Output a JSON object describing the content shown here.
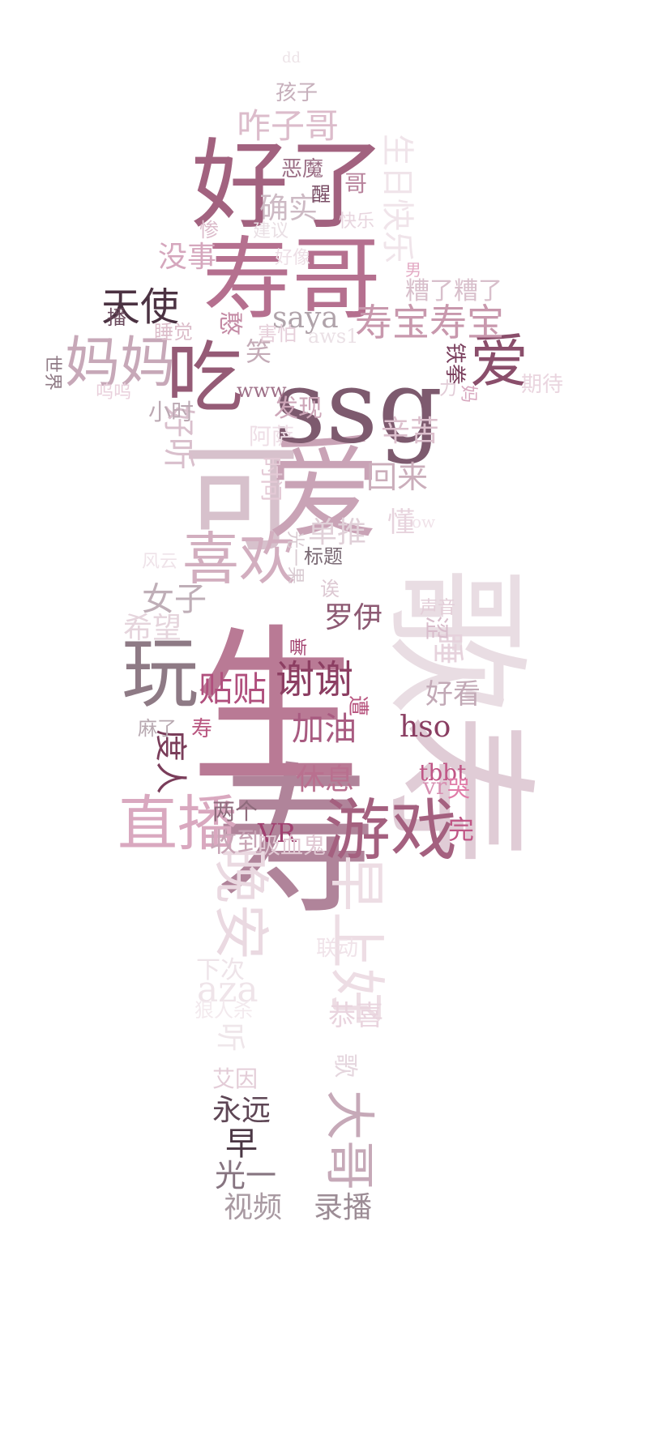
{
  "words": [
    {
      "text": "寿",
      "color": "#b0849a"
    },
    {
      "text": "生",
      "color": "#b97a95"
    },
    {
      "text": "寿",
      "color": "#e0ccd6"
    },
    {
      "text": "歌",
      "color": "#e9dde3"
    },
    {
      "text": "可",
      "color": "#d7c1cc"
    },
    {
      "text": "爱",
      "color": "#c9a3b6"
    },
    {
      "text": "ssg",
      "color": "#7d5a6e"
    },
    {
      "text": "好了",
      "color": "#a2627f"
    },
    {
      "text": "寿哥",
      "color": "#b5708f"
    },
    {
      "text": "吃",
      "color": "#955b76"
    },
    {
      "text": "玩",
      "color": "#8e7a85"
    },
    {
      "text": "游戏",
      "color": "#a4607f"
    },
    {
      "text": "直播",
      "color": "#d9a8bf"
    },
    {
      "text": "喜欢",
      "color": "#d2aebf"
    },
    {
      "text": "妈妈",
      "color": "#c7a8b8"
    },
    {
      "text": "爱",
      "color": "#8a4e6b"
    },
    {
      "text": "天使",
      "color": "#4b3242"
    },
    {
      "text": "寿宝寿宝",
      "color": "#c898ad"
    },
    {
      "text": "晚安",
      "color": "#ead9e1"
    },
    {
      "text": "早上好",
      "color": "#eddde4"
    },
    {
      "text": "大哥",
      "color": "#c6a9b8"
    },
    {
      "text": "谢谢",
      "color": "#8c3e62"
    },
    {
      "text": "加油",
      "color": "#a85a80"
    },
    {
      "text": "贴贴",
      "color": "#b04f7d"
    },
    {
      "text": "hso",
      "color": "#8a3e62"
    },
    {
      "text": "saya",
      "color": "#b0a3aa"
    },
    {
      "text": "咋子哥",
      "color": "#dcbccb"
    },
    {
      "text": "确实",
      "color": "#cdbac4"
    },
    {
      "text": "没事",
      "color": "#d5a7bd"
    },
    {
      "text": "生日快乐",
      "color": "#f0e4ea"
    },
    {
      "text": "好听",
      "color": "#d9bfcc"
    },
    {
      "text": "回来",
      "color": "#cbaebb"
    },
    {
      "text": "辛苦",
      "color": "#dcc0cd"
    },
    {
      "text": "单推",
      "color": "#e0d0d8"
    },
    {
      "text": "女子",
      "color": "#bfaeb7"
    },
    {
      "text": "希望",
      "color": "#e5d4dc"
    },
    {
      "text": "罗伊",
      "color": "#8d5a73"
    },
    {
      "text": "睡",
      "color": "#e6d2dc"
    },
    {
      "text": "好看",
      "color": "#c2a9b6"
    },
    {
      "text": "度人",
      "color": "#7a3d5a"
    },
    {
      "text": "休息",
      "color": "#b9708f"
    },
    {
      "text": "收到",
      "color": "#c8a5b6"
    },
    {
      "text": "两个",
      "color": "#8e6b7c"
    },
    {
      "text": "VR",
      "color": "#a04070"
    },
    {
      "text": "吸血鬼",
      "color": "#e0c8d3"
    },
    {
      "text": "完",
      "color": "#c05686"
    },
    {
      "text": "tbbt",
      "color": "#c05686"
    },
    {
      "text": "vr",
      "color": "#d790b2"
    },
    {
      "text": "哭",
      "color": "#e07ca8"
    },
    {
      "text": "aza",
      "color": "#efe4e9"
    },
    {
      "text": "永远",
      "color": "#5e4655"
    },
    {
      "text": "早",
      "color": "#4b3744"
    },
    {
      "text": "光一",
      "color": "#867480"
    },
    {
      "text": "视频",
      "color": "#a99aa2"
    },
    {
      "text": "录播",
      "color": "#9c8c95"
    },
    {
      "text": "恭喜",
      "color": "#e9d4de"
    },
    {
      "text": "歌",
      "color": "#e5d6de"
    },
    {
      "text": "艾因",
      "color": "#e3ccd7"
    },
    {
      "text": "听",
      "color": "#efe6ea"
    },
    {
      "text": "下次",
      "color": "#eee4e9"
    },
    {
      "text": "狠人杀",
      "color": "#f3eaee"
    },
    {
      "text": "联动",
      "color": "#f0e3e9"
    },
    {
      "text": "憨",
      "color": "#c48ba5"
    },
    {
      "text": "笑",
      "color": "#c4abb7"
    },
    {
      "text": "害怕",
      "color": "#e6cfda"
    },
    {
      "text": "aws1",
      "color": "#eae0e5"
    },
    {
      "text": "www",
      "color": "#9d6e86"
    },
    {
      "text": "发现",
      "color": "#cda6b8"
    },
    {
      "text": "阿萨",
      "color": "#eedee6"
    },
    {
      "text": "时间",
      "color": "#e4cad6"
    },
    {
      "text": "小时",
      "color": "#bca9b3"
    },
    {
      "text": "睡觉",
      "color": "#dcbdca"
    },
    {
      "text": "播",
      "color": "#6b4a5d"
    },
    {
      "text": "世界",
      "color": "#8f7a85"
    },
    {
      "text": "呜呜",
      "color": "#e9d0dc"
    },
    {
      "text": "铁拳",
      "color": "#7a3f5d"
    },
    {
      "text": "力",
      "color": "#e2ccd7"
    },
    {
      "text": "妈",
      "color": "#d8a8bf"
    },
    {
      "text": "期待",
      "color": "#ead5df"
    },
    {
      "text": "糟了糟了",
      "color": "#d8bfcb"
    },
    {
      "text": "男",
      "color": "#e3aac4"
    },
    {
      "text": "恶魔",
      "color": "#9a6d84"
    },
    {
      "text": "醒",
      "color": "#7a4e66"
    },
    {
      "text": "哥",
      "color": "#b8839c"
    },
    {
      "text": "孩子",
      "color": "#c7b0bc"
    },
    {
      "text": "dd",
      "color": "#ede4e8"
    },
    {
      "text": "惨",
      "color": "#dcbccb"
    },
    {
      "text": "建议",
      "color": "#e9dfe4"
    },
    {
      "text": "快乐",
      "color": "#e8d6df"
    },
    {
      "text": "好像",
      "color": "#eddfe6"
    },
    {
      "text": "懂",
      "color": "#e7d3dd"
    },
    {
      "text": "ow",
      "color": "#f0e2e9"
    },
    {
      "text": "风云",
      "color": "#efe3e9"
    },
    {
      "text": "光一果",
      "color": "#d9cbd2"
    },
    {
      "text": "标题",
      "color": "#7a6a74"
    },
    {
      "text": "诶",
      "color": "#ddc9d3"
    },
    {
      "text": "声音",
      "color": "#e3ced8"
    },
    {
      "text": "涩",
      "color": "#d8bccb"
    },
    {
      "text": "嘶",
      "color": "#a2406e"
    },
    {
      "text": "遭",
      "color": "#b8557f"
    },
    {
      "text": "寿",
      "color": "#b8557f"
    },
    {
      "text": "麻了",
      "color": "#b8a9b1"
    }
  ]
}
